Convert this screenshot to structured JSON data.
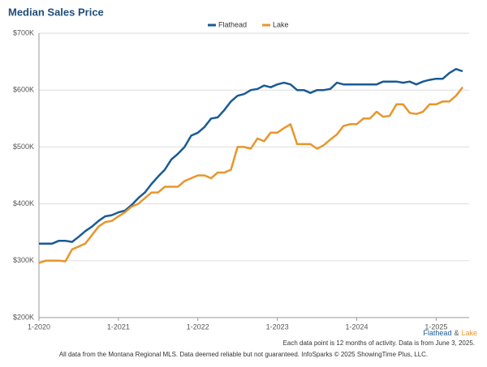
{
  "chart_data": {
    "type": "line",
    "title": "Median Sales Price",
    "categories": [
      "1-2020",
      null,
      null,
      null,
      null,
      null,
      null,
      null,
      null,
      null,
      null,
      null,
      "1-2021",
      null,
      null,
      null,
      null,
      null,
      null,
      null,
      null,
      null,
      null,
      null,
      "1-2022",
      null,
      null,
      null,
      null,
      null,
      null,
      null,
      null,
      null,
      null,
      null,
      "1-2023",
      null,
      null,
      null,
      null,
      null,
      null,
      null,
      null,
      null,
      null,
      null,
      "1-2024",
      null,
      null,
      null,
      null,
      null,
      null,
      null,
      null,
      null,
      null,
      null,
      "1-2025",
      null,
      null,
      null,
      null
    ],
    "series": [
      {
        "name": "Flathead",
        "color": "#1a5a96",
        "values": [
          330000,
          330000,
          330000,
          335000,
          335000,
          333000,
          342000,
          352000,
          360000,
          370000,
          378000,
          380000,
          385000,
          388000,
          398000,
          410000,
          420000,
          435000,
          448000,
          460000,
          478000,
          488000,
          500000,
          520000,
          525000,
          535000,
          550000,
          552000,
          565000,
          580000,
          590000,
          593000,
          600000,
          602000,
          608000,
          605000,
          610000,
          613000,
          610000,
          600000,
          600000,
          595000,
          600000,
          600000,
          602000,
          613000,
          610000,
          610000,
          610000,
          610000,
          610000,
          610000,
          615000,
          615000,
          615000,
          613000,
          615000,
          610000,
          615000,
          618000,
          620000,
          620000,
          630000,
          637000,
          633000
        ]
      },
      {
        "name": "Lake",
        "color": "#e8962a",
        "values": [
          296000,
          300000,
          300000,
          300000,
          299000,
          320000,
          325000,
          330000,
          345000,
          360000,
          368000,
          370000,
          378000,
          385000,
          395000,
          400000,
          410000,
          420000,
          420000,
          430000,
          430000,
          430000,
          440000,
          445000,
          450000,
          450000,
          445000,
          455000,
          455000,
          460000,
          500000,
          500000,
          497000,
          515000,
          510000,
          525000,
          525000,
          533000,
          540000,
          505000,
          505000,
          505000,
          497000,
          503000,
          513000,
          522000,
          537000,
          540000,
          540000,
          550000,
          550000,
          562000,
          553000,
          555000,
          575000,
          575000,
          560000,
          558000,
          562000,
          575000,
          575000,
          580000,
          580000,
          590000,
          605000
        ]
      }
    ],
    "ylim": [
      200000,
      700000
    ],
    "yticks": [
      {
        "value": 200000,
        "label": "$200K"
      },
      {
        "value": 300000,
        "label": "$300K"
      },
      {
        "value": 400000,
        "label": "$400K"
      },
      {
        "value": 500000,
        "label": "$500K"
      },
      {
        "value": 600000,
        "label": "$600K"
      },
      {
        "value": 700000,
        "label": "$700K"
      }
    ],
    "grid": true,
    "legend": "top",
    "series_joiner": "&",
    "notes": [
      "Each data point is 12 months of activity. Data is from June 3, 2025.",
      "All data from the Montana Regional MLS. Data deemed reliable but not guaranteed. InfoSparks © 2025 ShowingTime Plus, LLC."
    ]
  }
}
